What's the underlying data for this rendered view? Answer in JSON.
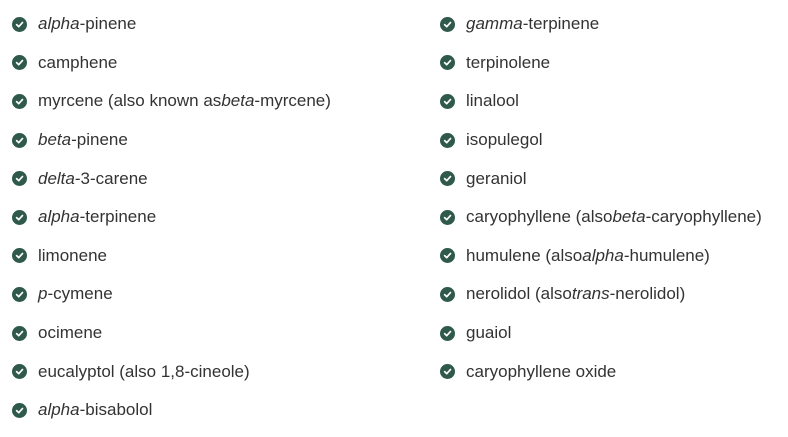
{
  "lists": {
    "left": [
      {
        "parts": [
          {
            "t": "alpha",
            "i": true
          },
          {
            "t": "-pinene",
            "i": false
          }
        ]
      },
      {
        "parts": [
          {
            "t": "camphene",
            "i": false
          }
        ]
      },
      {
        "parts": [
          {
            "t": "myrcene (also known as",
            "i": false
          },
          {
            "t": "beta",
            "i": true
          },
          {
            "t": "-myrcene)",
            "i": false
          }
        ]
      },
      {
        "parts": [
          {
            "t": "beta",
            "i": true
          },
          {
            "t": "-pinene",
            "i": false
          }
        ]
      },
      {
        "parts": [
          {
            "t": "delta",
            "i": true
          },
          {
            "t": "-3-carene",
            "i": false
          }
        ]
      },
      {
        "parts": [
          {
            "t": "alpha",
            "i": true
          },
          {
            "t": "-terpinene",
            "i": false
          }
        ]
      },
      {
        "parts": [
          {
            "t": "limonene",
            "i": false
          }
        ]
      },
      {
        "parts": [
          {
            "t": "p",
            "i": true
          },
          {
            "t": "-cymene",
            "i": false
          }
        ]
      },
      {
        "parts": [
          {
            "t": "ocimene",
            "i": false
          }
        ]
      },
      {
        "parts": [
          {
            "t": "eucalyptol (also 1,8-cineole)",
            "i": false
          }
        ]
      },
      {
        "parts": [
          {
            "t": "alpha",
            "i": true
          },
          {
            "t": "-bisabolol",
            "i": false
          }
        ]
      }
    ],
    "right": [
      {
        "parts": [
          {
            "t": "gamma",
            "i": true
          },
          {
            "t": "-terpinene",
            "i": false
          }
        ]
      },
      {
        "parts": [
          {
            "t": "terpinolene",
            "i": false
          }
        ]
      },
      {
        "parts": [
          {
            "t": "linalool",
            "i": false
          }
        ]
      },
      {
        "parts": [
          {
            "t": "isopulegol",
            "i": false
          }
        ]
      },
      {
        "parts": [
          {
            "t": "geraniol",
            "i": false
          }
        ]
      },
      {
        "parts": [
          {
            "t": "caryophyllene (also",
            "i": false
          },
          {
            "t": "beta",
            "i": true
          },
          {
            "t": "-caryophyllene)",
            "i": false
          }
        ]
      },
      {
        "parts": [
          {
            "t": "humulene (also",
            "i": false
          },
          {
            "t": "alpha",
            "i": true
          },
          {
            "t": "-humulene)",
            "i": false
          }
        ]
      },
      {
        "parts": [
          {
            "t": "nerolidol (also",
            "i": false
          },
          {
            "t": "trans",
            "i": true
          },
          {
            "t": "-nerolidol)",
            "i": false
          }
        ]
      },
      {
        "parts": [
          {
            "t": "guaiol",
            "i": false
          }
        ]
      },
      {
        "parts": [
          {
            "t": "caryophyllene oxide",
            "i": false
          }
        ]
      }
    ]
  },
  "icon": {
    "name": "check-circle-icon",
    "color": "#2f5a4b"
  }
}
